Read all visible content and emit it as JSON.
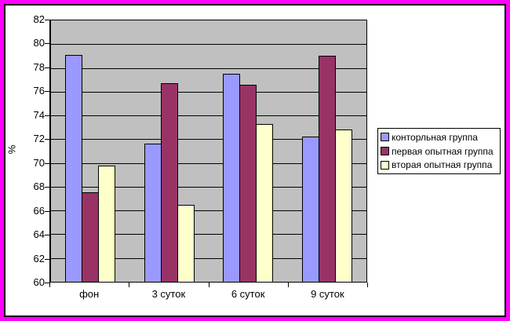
{
  "chart_data": {
    "type": "bar",
    "title": "",
    "categories": [
      "фон",
      "3 суток",
      "6 суток",
      "9 суток"
    ],
    "series": [
      {
        "name": "конторльная группа",
        "color": "#9999FF",
        "values": [
          79.1,
          71.6,
          77.5,
          72.2
        ]
      },
      {
        "name": "первая опытная группа",
        "color": "#993366",
        "values": [
          67.5,
          76.7,
          76.6,
          79.0
        ]
      },
      {
        "name": "вторая опытная группа",
        "color": "#FFFFCC",
        "values": [
          69.8,
          66.5,
          73.3,
          72.8
        ]
      }
    ],
    "ylabel": "%",
    "ylim": [
      60,
      82
    ],
    "yticks": [
      82,
      80,
      78,
      76,
      74,
      72,
      70,
      68,
      66,
      64,
      62,
      60
    ],
    "grid": true,
    "legend_position": "right",
    "colors": {
      "outer_border": "#FF00FF",
      "chart_background": "#FFFFFF",
      "plot_background": "#C0C0C0",
      "gridline": "#000000"
    }
  }
}
